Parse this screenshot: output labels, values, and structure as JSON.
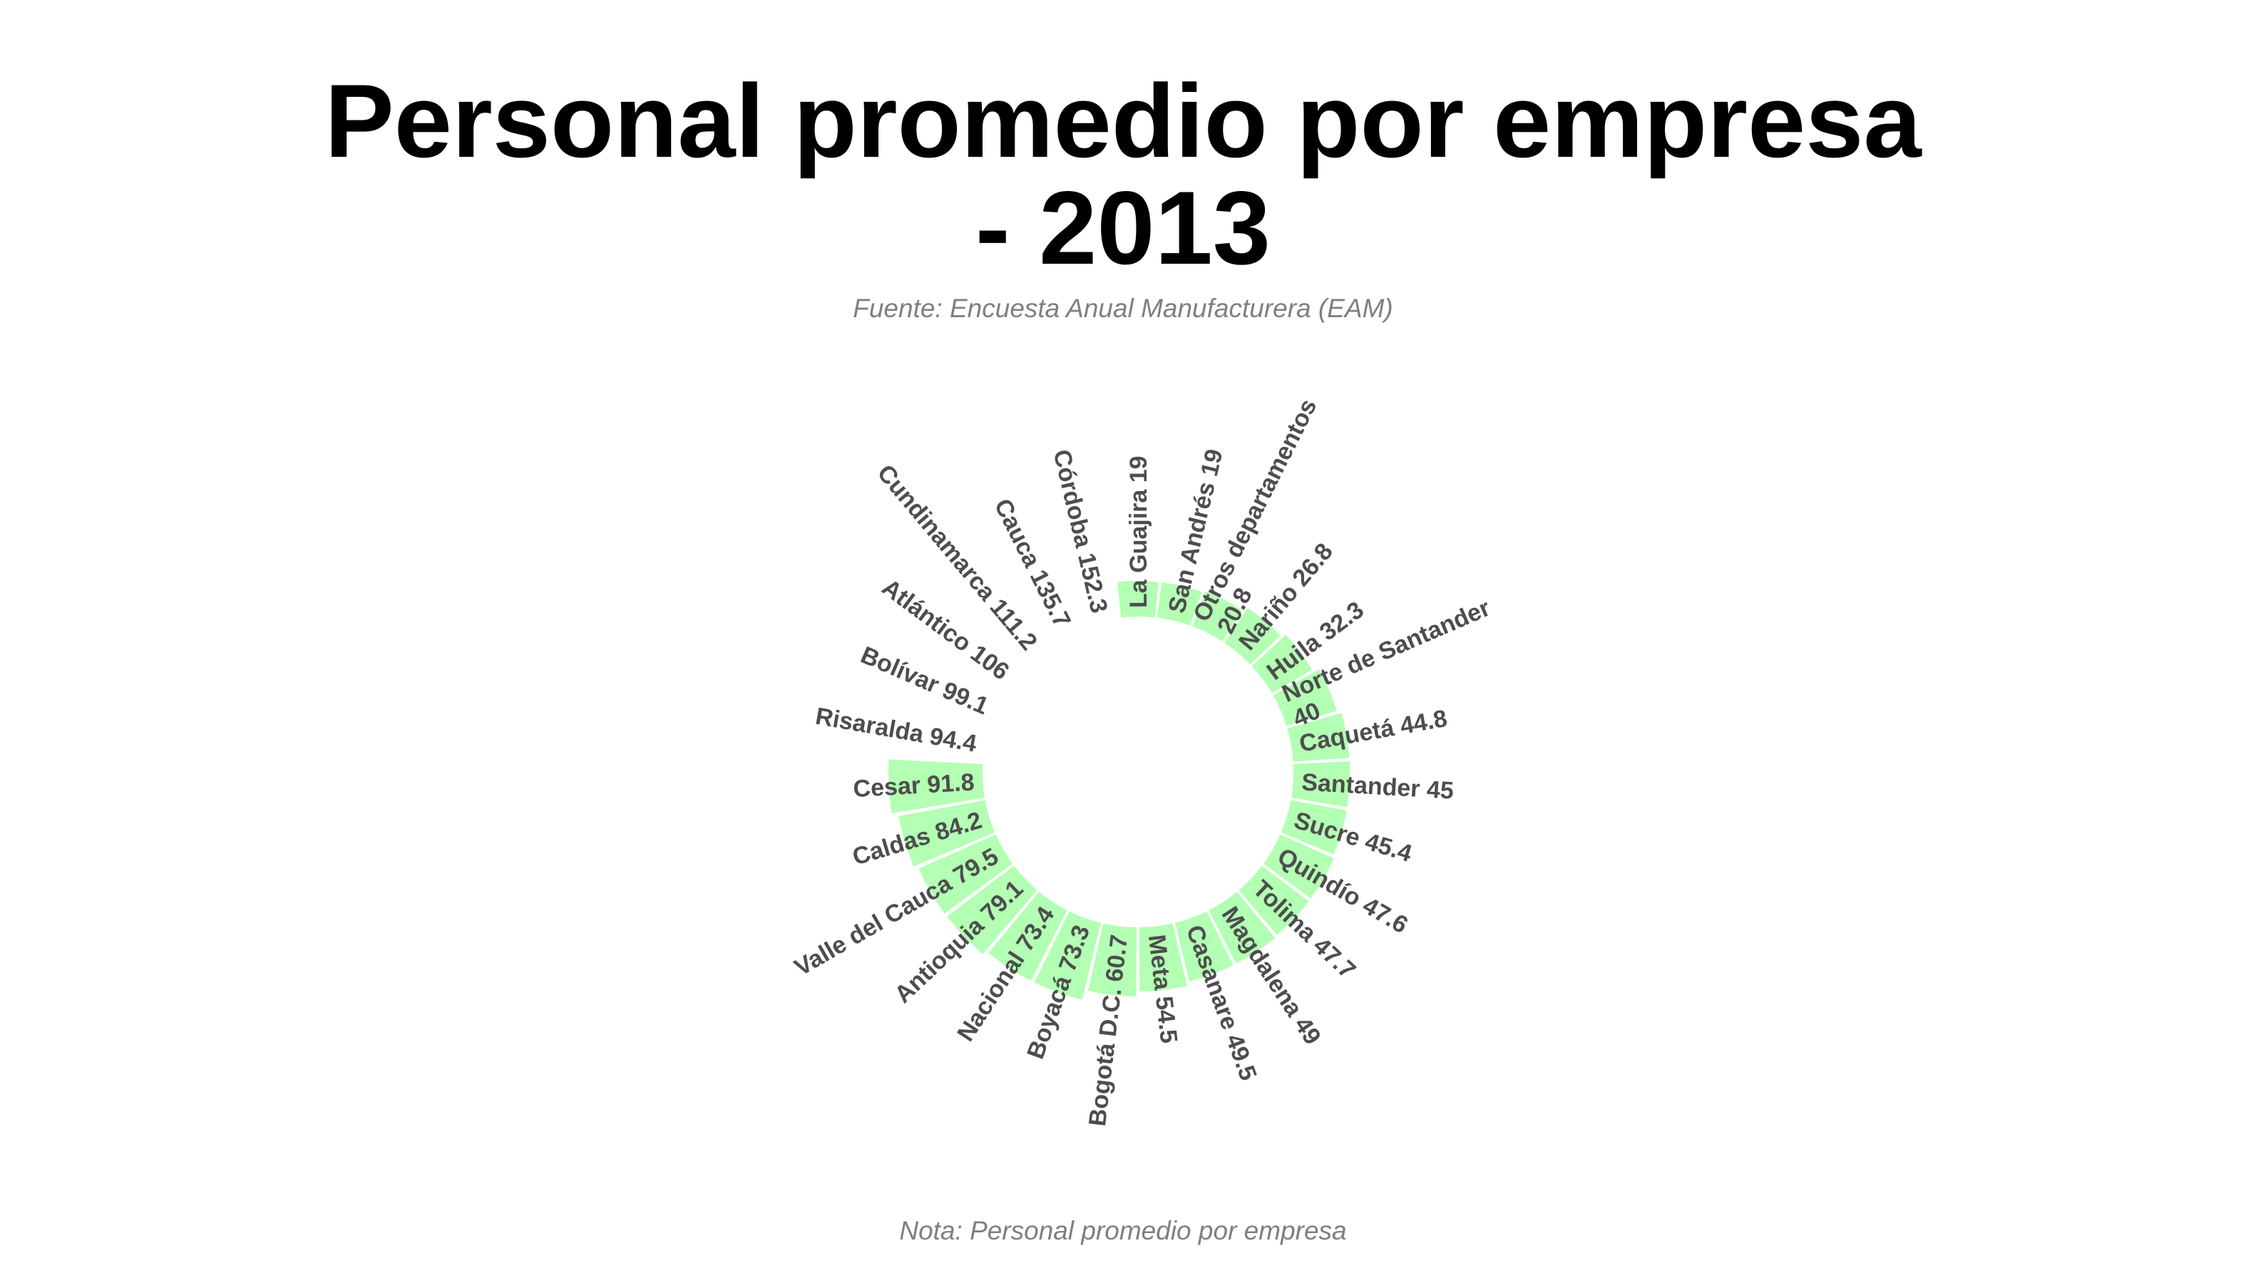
{
  "chart_data": {
    "type": "bar",
    "coord": "polar",
    "title_lines": [
      "Personal promedio por empresa",
      "- 2013"
    ],
    "subtitle": "Fuente: Encuesta Anual Manufacturera (EAM)",
    "caption": "Nota: Personal promedio por empresa",
    "bar_color": "#b3ffb3",
    "label_color": "#4d4d4d",
    "data": [
      {
        "name": "La Guajira",
        "value": 19,
        "label_lines": [
          "La Guajira 19"
        ]
      },
      {
        "name": "San Andrés",
        "value": 19,
        "label_lines": [
          "San Andrés 19"
        ]
      },
      {
        "name": "Otros departamentos",
        "value": 20.8,
        "label_lines": [
          "Otros departamentos",
          "20.8"
        ]
      },
      {
        "name": "Nariño",
        "value": 26.8,
        "label_lines": [
          "Nariño 26.8"
        ]
      },
      {
        "name": "Huila",
        "value": 32.3,
        "label_lines": [
          "Huila 32.3"
        ]
      },
      {
        "name": "Norte de Santander",
        "value": 40,
        "label_lines": [
          "Norte de Santander",
          "40"
        ]
      },
      {
        "name": "Caquetá",
        "value": 44.8,
        "label_lines": [
          "Caquetá 44.8"
        ]
      },
      {
        "name": "Santander",
        "value": 45,
        "label_lines": [
          "Santander 45"
        ]
      },
      {
        "name": "Sucre",
        "value": 45.4,
        "label_lines": [
          "Sucre 45.4"
        ]
      },
      {
        "name": "Quindío",
        "value": 47.6,
        "label_lines": [
          "Quindío 47.6"
        ]
      },
      {
        "name": "Tolima",
        "value": 47.7,
        "label_lines": [
          "Tolima 47.7"
        ]
      },
      {
        "name": "Magdalena",
        "value": 49,
        "label_lines": [
          "Magdalena 49"
        ]
      },
      {
        "name": "Casanare",
        "value": 49.5,
        "label_lines": [
          "Casanare 49.5"
        ]
      },
      {
        "name": "Meta",
        "value": 54.5,
        "label_lines": [
          "Meta 54.5"
        ]
      },
      {
        "name": "Bogotá D.C.",
        "value": 60.7,
        "label_lines": [
          "Bogotá D.C. 60.7"
        ]
      },
      {
        "name": "Boyacá",
        "value": 73.3,
        "label_lines": [
          "Boyacá 73.3"
        ]
      },
      {
        "name": "Nacional",
        "value": 73.4,
        "label_lines": [
          "Nacional 73.4"
        ]
      },
      {
        "name": "Antioquia",
        "value": 79.1,
        "label_lines": [
          "Antioquia 79.1"
        ]
      },
      {
        "name": "Valle del Cauca",
        "value": 79.5,
        "label_lines": [
          "Valle del Cauca 79.5"
        ]
      },
      {
        "name": "Caldas",
        "value": 84.2,
        "label_lines": [
          "Caldas 84.2"
        ]
      },
      {
        "name": "Cesar",
        "value": 91.8,
        "label_lines": [
          "Cesar 91.8"
        ]
      },
      {
        "name": "Risaralda",
        "value": 94.4,
        "label_lines": [
          "Risaralda 94.4"
        ]
      },
      {
        "name": "Bolívar",
        "value": 99.1,
        "label_lines": [
          "Bolívar 99.1"
        ]
      },
      {
        "name": "Atlántico",
        "value": 106,
        "label_lines": [
          "Atlántico 106"
        ]
      },
      {
        "name": "Cundinamarca",
        "value": 111.2,
        "label_lines": [
          "Cundinamarca 111.2"
        ]
      },
      {
        "name": "Cauca",
        "value": 135.7,
        "label_lines": [
          "Cauca 135.7"
        ]
      },
      {
        "name": "Córdoba",
        "value": 152.3,
        "label_lines": [
          "Córdoba 152.3"
        ]
      }
    ]
  }
}
